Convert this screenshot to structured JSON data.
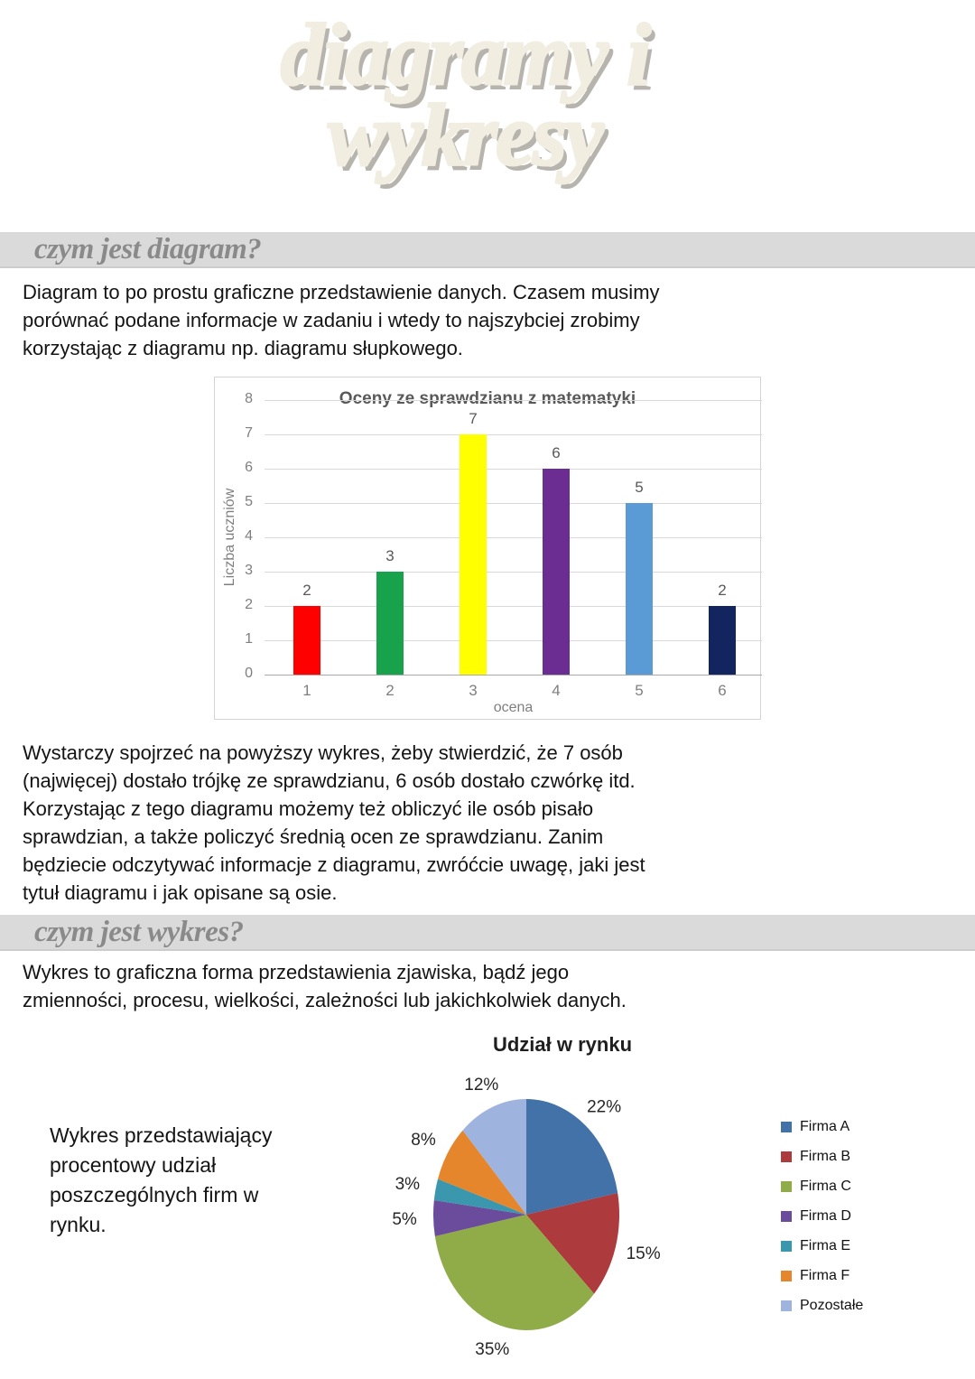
{
  "page_title": {
    "line1": "diagramy i",
    "line2": "wykresy"
  },
  "sections": {
    "diagram": {
      "heading": "czym jest diagram?",
      "intro": "Diagram to po prostu graficzne przedstawienie danych. Czasem musimy\nporównać podane informacje w zadaniu i wtedy to najszybciej zrobimy\nkorzystając z diagramu np. diagramu słupkowego.",
      "after_chart": "Wystarczy spojrzeć na powyższy wykres, żeby stwierdzić, że 7 osób\n(najwięcej) dostało trójkę ze sprawdzianu, 6 osób dostało czwórkę itd.\nKorzystając z tego diagramu możemy też obliczyć ile osób pisało\nsprawdzian, a także policzyć średnią ocen ze sprawdzianu. Zanim\nbędziecie odczytywać informacje z diagramu, zwróćcie uwagę, jaki jest\ntytuł diagramu i jak opisane są osie."
    },
    "wykres": {
      "heading": "czym jest wykres?",
      "intro": "Wykres to graficzna forma przedstawienia zjawiska, bądź jego\nzmienności, procesu, wielkości, zależności lub jakichkolwiek danych.",
      "pie_caption": "Wykres przedstawiający\nprocentowy udział\nposzczególnych firm w\nrynku."
    }
  },
  "chart_data": [
    {
      "type": "bar",
      "title": "Oceny ze sprawdzianu z matematyki",
      "xlabel": "ocena",
      "ylabel": "Liczba uczniów",
      "categories": [
        "1",
        "2",
        "3",
        "4",
        "5",
        "6"
      ],
      "values": [
        2,
        3,
        7,
        6,
        5,
        2
      ],
      "bar_colors": [
        "#ff0000",
        "#17a24b",
        "#ffff00",
        "#6b2d91",
        "#5b9bd5",
        "#13255e"
      ],
      "ylim": [
        0,
        8
      ],
      "ytick_step": 1,
      "grid": true,
      "data_labels": true
    },
    {
      "type": "pie",
      "title": "Udział w rynku",
      "labels": [
        "Firma A",
        "Firma B",
        "Firma C",
        "Firma D",
        "Firma E",
        "Firma F",
        "Pozostałe"
      ],
      "values": [
        22,
        15,
        35,
        5,
        3,
        8,
        12
      ],
      "value_labels": [
        "22%",
        "15%",
        "35%",
        "5%",
        "3%",
        "8%",
        "12%"
      ],
      "colors": [
        "#4272a8",
        "#ad3a3c",
        "#8fac48",
        "#6a4b9c",
        "#3b97ad",
        "#e5862d",
        "#9fb3df"
      ],
      "start_angle_deg": 0,
      "direction": "clockwise",
      "legend_position": "right"
    }
  ],
  "theme": {
    "banner_bg": "#dadada",
    "heading_color": "#8a8a8a",
    "title_fill": "#f1ede1",
    "title_shadow": "#b7b4ae",
    "text_color": "#141414",
    "chart_text": "#595959",
    "chart_tick": "#7f7f7f",
    "grid_color": "#d9d9d9"
  }
}
